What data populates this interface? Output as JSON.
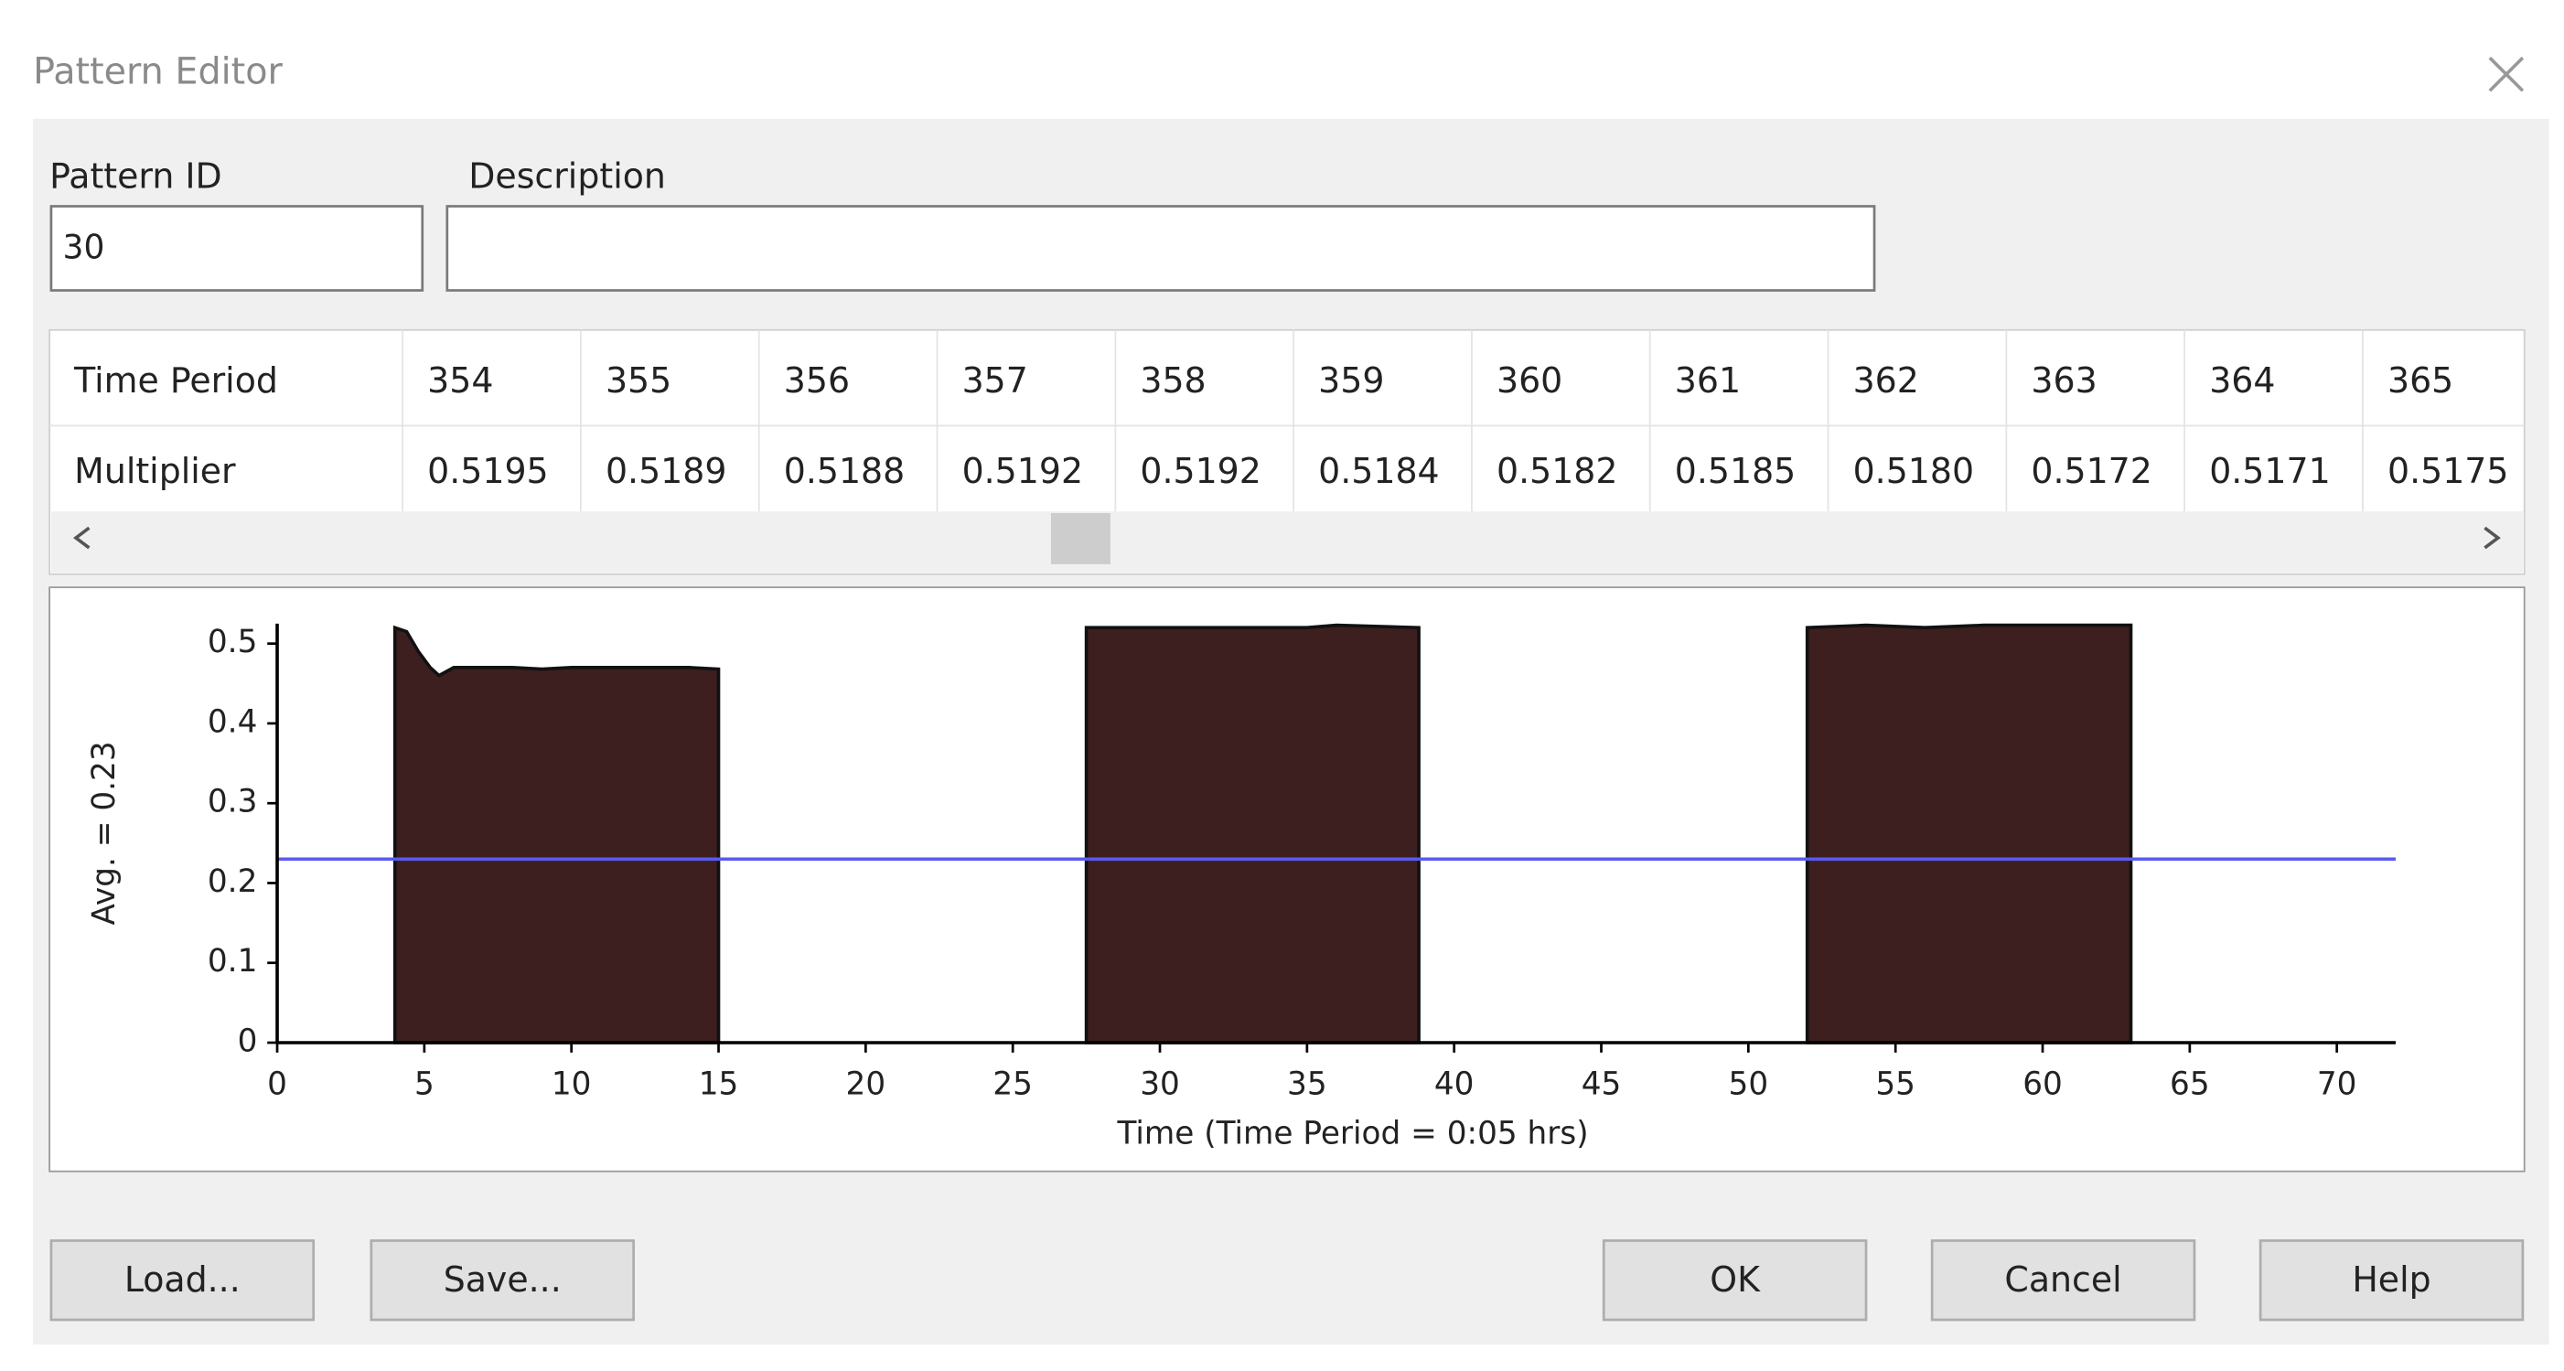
{
  "window": {
    "title": "Pattern Editor"
  },
  "form": {
    "pattern_id_label": "Pattern ID",
    "pattern_id": "30",
    "description_label": "Description"
  },
  "table": {
    "row_headers": [
      "Time Period",
      "Multiplier"
    ],
    "time_periods": [
      354,
      355,
      356,
      357,
      358,
      359,
      360,
      361,
      362,
      363,
      364,
      365
    ],
    "multipliers": [
      "0.5195",
      "0.5189",
      "0.5188",
      "0.5192",
      "0.5192",
      "0.5184",
      "0.5182",
      "0.5185",
      "0.5180",
      "0.5172",
      "0.5171",
      "0.5175"
    ]
  },
  "chart_data": {
    "type": "area",
    "x_label": "Time (Time Period = 0:05 hrs)",
    "y_label": "Avg. = 0.23",
    "color": "#3d1f1f",
    "x": [
      4.0,
      4.4,
      4.8,
      5.2,
      5.5,
      6.0,
      8.0,
      9.0,
      10.0,
      12.0,
      14.0,
      15.0,
      null,
      27.5,
      30.0,
      35.0,
      36.0,
      38.8,
      null,
      52.0,
      54.0,
      56.0,
      58.0,
      63.0
    ],
    "values": [
      0.52,
      0.515,
      0.49,
      0.47,
      0.46,
      0.47,
      0.47,
      0.468,
      0.47,
      0.47,
      0.47,
      0.468,
      null,
      0.52,
      0.52,
      0.52,
      0.523,
      0.52,
      null,
      0.52,
      0.523,
      0.52,
      0.523,
      0.523
    ],
    "average": 0.23,
    "average_color": "#5a5af0",
    "xlim": [
      0,
      72
    ],
    "ylim": [
      0,
      0.525
    ],
    "xticks": [
      0,
      5,
      10,
      15,
      20,
      25,
      30,
      35,
      40,
      45,
      50,
      55,
      60,
      65,
      70
    ],
    "yticks": [
      0,
      0.1,
      0.2,
      0.3,
      0.4,
      0.5
    ]
  },
  "buttons": [
    "Load...",
    "Save...",
    "OK",
    "Cancel",
    "Help"
  ]
}
